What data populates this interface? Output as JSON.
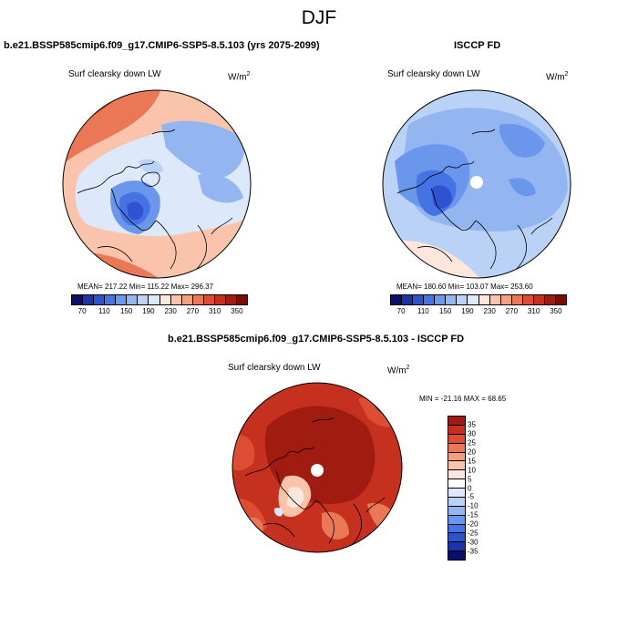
{
  "figure": {
    "title": "DJF",
    "left_panel": {
      "title": "b.e21.BSSP585cmip6.f09_g17.CMIP6-SSP5-8.5.103 (yrs 2075-2099)",
      "variable": "Surf clearsky down LW",
      "units_base": "W/m",
      "units_exp": "2",
      "stats": "MEAN= 217.22  Min= 115.22  Max= 296.37"
    },
    "right_panel": {
      "title": "ISCCP FD",
      "variable": "Surf clearsky down LW",
      "units_base": "W/m",
      "units_exp": "2",
      "stats": "MEAN= 180.60  Min= 103.07  Max= 253.60"
    },
    "diff_panel": {
      "title": "b.e21.BSSP585cmip6.f09_g17.CMIP6-SSP5-8.5.103 - ISCCP FD",
      "variable": "Surf clearsky down LW",
      "units_base": "W/m",
      "units_exp": "2",
      "stats": "MIN = -21.16 MAX =  68.65"
    }
  },
  "chart_data": [
    {
      "type": "heatmap",
      "projection": "north polar stereographic",
      "title": "b.e21.BSSP585cmip6.f09_g17.CMIP6-SSP5-8.5.103 (yrs 2075-2099)",
      "variable": "Surf clearsky down LW",
      "units": "W/m2",
      "mean": 217.22,
      "min": 115.22,
      "max": 296.37,
      "colorbar": {
        "orientation": "horizontal",
        "levels": [
          70,
          90,
          110,
          130,
          150,
          170,
          190,
          210,
          230,
          250,
          270,
          290,
          310,
          330,
          350
        ],
        "tick_labels": [
          "70",
          "110",
          "150",
          "190",
          "230",
          "270",
          "310",
          "350"
        ],
        "colors": [
          "#08106b",
          "#1f33a8",
          "#2f52d1",
          "#4673e3",
          "#6a96ec",
          "#93b6f1",
          "#bad2f6",
          "#dde9fa",
          "#fde6dc",
          "#f9c4ab",
          "#f3a07f",
          "#ea7857",
          "#dc4d33",
          "#c5301f",
          "#a01c10",
          "#7a0b05"
        ]
      }
    },
    {
      "type": "heatmap",
      "projection": "north polar stereographic",
      "title": "ISCCP FD",
      "variable": "Surf clearsky down LW",
      "units": "W/m2",
      "mean": 180.6,
      "min": 103.07,
      "max": 253.6,
      "colorbar": {
        "orientation": "horizontal",
        "levels": [
          70,
          90,
          110,
          130,
          150,
          170,
          190,
          210,
          230,
          250,
          270,
          290,
          310,
          330,
          350
        ],
        "tick_labels": [
          "70",
          "110",
          "150",
          "190",
          "230",
          "270",
          "310",
          "350"
        ],
        "colors": [
          "#08106b",
          "#1f33a8",
          "#2f52d1",
          "#4673e3",
          "#6a96ec",
          "#93b6f1",
          "#bad2f6",
          "#dde9fa",
          "#fde6dc",
          "#f9c4ab",
          "#f3a07f",
          "#ea7857",
          "#dc4d33",
          "#c5301f",
          "#a01c10",
          "#7a0b05"
        ]
      }
    },
    {
      "type": "heatmap",
      "projection": "north polar stereographic",
      "title": "b.e21.BSSP585cmip6.f09_g17.CMIP6-SSP5-8.5.103 - ISCCP FD",
      "variable": "Surf clearsky down LW",
      "units": "W/m2",
      "min": -21.16,
      "max": 68.65,
      "colorbar": {
        "orientation": "vertical",
        "levels": [
          -35,
          -30,
          -25,
          -20,
          -15,
          -10,
          -5,
          0,
          5,
          10,
          15,
          20,
          25,
          30,
          35
        ],
        "tick_labels": [
          "35",
          "30",
          "25",
          "20",
          "15",
          "10",
          "5",
          "0",
          "-5",
          "-10",
          "-15",
          "-20",
          "-25",
          "-30",
          "-35"
        ],
        "colors_top_to_bottom": [
          "#a01c10",
          "#c5301f",
          "#dc4d33",
          "#ea7857",
          "#f3a07f",
          "#f9c4ab",
          "#fde6dc",
          "#ffffff",
          "#dde9fa",
          "#bad2f6",
          "#93b6f1",
          "#6a96ec",
          "#4673e3",
          "#2f52d1",
          "#1f33a8",
          "#08106b"
        ]
      }
    }
  ]
}
